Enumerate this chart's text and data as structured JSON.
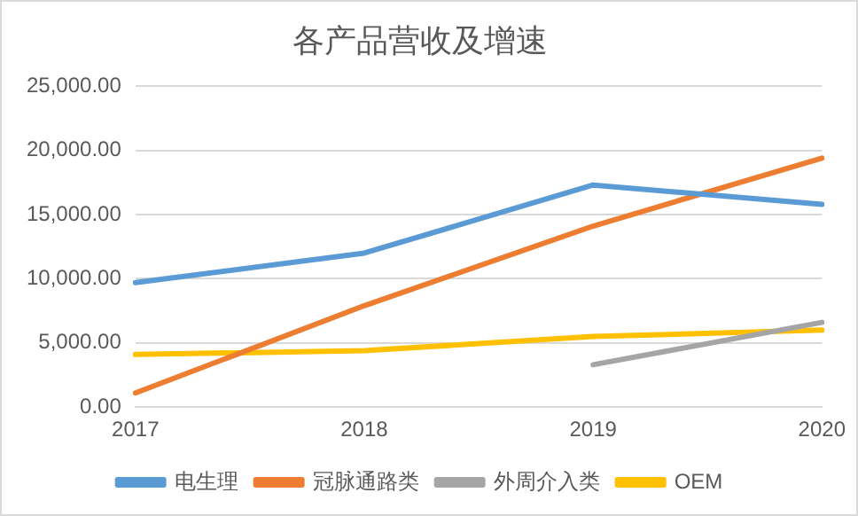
{
  "chart_data": {
    "type": "line",
    "title": "各产品营收及增速",
    "categories": [
      "2017",
      "2018",
      "2019",
      "2020"
    ],
    "series": [
      {
        "name": "电生理",
        "color": "#5b9bd5",
        "values": [
          9700,
          12000,
          17300,
          15800
        ]
      },
      {
        "name": "冠脉通路类",
        "color": "#ed7d31",
        "values": [
          1100,
          7900,
          14100,
          19400
        ]
      },
      {
        "name": "外周介入类",
        "color": "#a5a5a5",
        "values": [
          null,
          null,
          3300,
          6600
        ]
      },
      {
        "name": "OEM",
        "color": "#ffc000",
        "values": [
          4100,
          4400,
          5500,
          6000
        ]
      }
    ],
    "ylim": [
      0,
      25000
    ],
    "yticks": [
      {
        "value": 0,
        "label": "0.00"
      },
      {
        "value": 5000,
        "label": "5,000.00"
      },
      {
        "value": 10000,
        "label": "10,000.00"
      },
      {
        "value": 15000,
        "label": "15,000.00"
      },
      {
        "value": 20000,
        "label": "20,000.00"
      },
      {
        "value": 25000,
        "label": "25,000.00"
      }
    ],
    "grid": "y",
    "legend": "bottom",
    "marker": "none",
    "line_style": "solid"
  }
}
